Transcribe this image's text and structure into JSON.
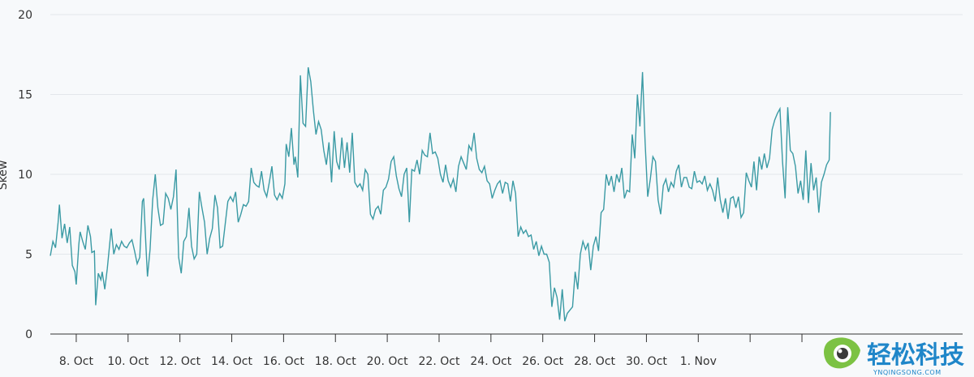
{
  "chart_data": {
    "type": "line",
    "xlabel": "",
    "ylabel": "Skew",
    "ylim": [
      0,
      20
    ],
    "yticks": [
      0,
      5,
      10,
      15,
      20
    ],
    "xlim": [
      7.0,
      42.2
    ],
    "xticks": [
      {
        "x": 8,
        "label": "8. Oct"
      },
      {
        "x": 10,
        "label": "10. Oct"
      },
      {
        "x": 12,
        "label": "12. Oct"
      },
      {
        "x": 14,
        "label": "14. Oct"
      },
      {
        "x": 16,
        "label": "16. Oct"
      },
      {
        "x": 18,
        "label": "18. Oct"
      },
      {
        "x": 20,
        "label": "20. Oct"
      },
      {
        "x": 22,
        "label": "22. Oct"
      },
      {
        "x": 24,
        "label": "24. Oct"
      },
      {
        "x": 26,
        "label": "26. Oct"
      },
      {
        "x": 28,
        "label": "28. Oct"
      },
      {
        "x": 30,
        "label": "30. Oct"
      },
      {
        "x": 32,
        "label": "1. Nov"
      },
      {
        "x": 34,
        "label": ""
      },
      {
        "x": 36,
        "label": ""
      }
    ],
    "series": [
      {
        "name": "",
        "color": "#3a9aa4",
        "points": [
          [
            7.0,
            4.9
          ],
          [
            7.1,
            5.8
          ],
          [
            7.2,
            5.4
          ],
          [
            7.3,
            7.0
          ],
          [
            7.35,
            8.1
          ],
          [
            7.45,
            6.0
          ],
          [
            7.55,
            6.9
          ],
          [
            7.65,
            5.7
          ],
          [
            7.75,
            6.7
          ],
          [
            7.85,
            4.3
          ],
          [
            7.95,
            3.9
          ],
          [
            8.0,
            3.1
          ],
          [
            8.1,
            5.6
          ],
          [
            8.15,
            6.4
          ],
          [
            8.25,
            5.8
          ],
          [
            8.35,
            5.3
          ],
          [
            8.45,
            6.8
          ],
          [
            8.55,
            6.1
          ],
          [
            8.6,
            5.1
          ],
          [
            8.7,
            5.2
          ],
          [
            8.75,
            1.8
          ],
          [
            8.85,
            3.8
          ],
          [
            8.95,
            3.4
          ],
          [
            9.0,
            3.9
          ],
          [
            9.1,
            2.8
          ],
          [
            9.2,
            4.1
          ],
          [
            9.35,
            6.6
          ],
          [
            9.45,
            5.0
          ],
          [
            9.55,
            5.6
          ],
          [
            9.65,
            5.3
          ],
          [
            9.75,
            5.8
          ],
          [
            9.85,
            5.5
          ],
          [
            9.95,
            5.4
          ],
          [
            10.05,
            5.7
          ],
          [
            10.15,
            5.9
          ],
          [
            10.25,
            5.2
          ],
          [
            10.35,
            4.4
          ],
          [
            10.45,
            4.8
          ],
          [
            10.55,
            8.3
          ],
          [
            10.6,
            8.5
          ],
          [
            10.7,
            5.2
          ],
          [
            10.75,
            3.6
          ],
          [
            10.85,
            5.3
          ],
          [
            10.95,
            8.4
          ],
          [
            11.05,
            10.0
          ],
          [
            11.15,
            7.9
          ],
          [
            11.25,
            6.8
          ],
          [
            11.35,
            6.9
          ],
          [
            11.45,
            8.8
          ],
          [
            11.55,
            8.5
          ],
          [
            11.65,
            7.8
          ],
          [
            11.75,
            8.6
          ],
          [
            11.85,
            10.3
          ],
          [
            11.95,
            4.8
          ],
          [
            12.05,
            3.8
          ],
          [
            12.15,
            5.8
          ],
          [
            12.25,
            6.1
          ],
          [
            12.35,
            7.9
          ],
          [
            12.45,
            5.5
          ],
          [
            12.55,
            4.7
          ],
          [
            12.65,
            5.0
          ],
          [
            12.75,
            8.9
          ],
          [
            12.85,
            7.9
          ],
          [
            12.95,
            7.0
          ],
          [
            13.05,
            5.0
          ],
          [
            13.15,
            6.0
          ],
          [
            13.25,
            6.6
          ],
          [
            13.35,
            8.7
          ],
          [
            13.45,
            7.9
          ],
          [
            13.55,
            5.4
          ],
          [
            13.65,
            5.5
          ],
          [
            13.75,
            6.9
          ],
          [
            13.85,
            8.3
          ],
          [
            13.95,
            8.6
          ],
          [
            14.05,
            8.3
          ],
          [
            14.15,
            8.9
          ],
          [
            14.25,
            7.0
          ],
          [
            14.35,
            7.5
          ],
          [
            14.45,
            8.1
          ],
          [
            14.55,
            8.0
          ],
          [
            14.65,
            8.3
          ],
          [
            14.75,
            10.4
          ],
          [
            14.85,
            9.5
          ],
          [
            14.95,
            9.3
          ],
          [
            15.05,
            9.2
          ],
          [
            15.15,
            10.2
          ],
          [
            15.25,
            9.0
          ],
          [
            15.35,
            8.6
          ],
          [
            15.45,
            9.5
          ],
          [
            15.55,
            10.5
          ],
          [
            15.65,
            8.7
          ],
          [
            15.75,
            8.4
          ],
          [
            15.85,
            8.8
          ],
          [
            15.95,
            8.5
          ],
          [
            16.05,
            9.4
          ],
          [
            16.1,
            11.9
          ],
          [
            16.2,
            11.1
          ],
          [
            16.3,
            12.9
          ],
          [
            16.4,
            10.6
          ],
          [
            16.45,
            11.1
          ],
          [
            16.55,
            9.8
          ],
          [
            16.65,
            16.2
          ],
          [
            16.75,
            13.2
          ],
          [
            16.85,
            13.0
          ],
          [
            16.95,
            16.7
          ],
          [
            17.05,
            15.8
          ],
          [
            17.15,
            14.0
          ],
          [
            17.25,
            12.5
          ],
          [
            17.35,
            13.3
          ],
          [
            17.45,
            12.8
          ],
          [
            17.55,
            11.5
          ],
          [
            17.65,
            10.6
          ],
          [
            17.75,
            12.0
          ],
          [
            17.85,
            9.5
          ],
          [
            17.95,
            12.7
          ],
          [
            18.05,
            10.8
          ],
          [
            18.15,
            10.3
          ],
          [
            18.25,
            12.3
          ],
          [
            18.35,
            10.4
          ],
          [
            18.45,
            12.0
          ],
          [
            18.55,
            10.1
          ],
          [
            18.65,
            12.6
          ],
          [
            18.75,
            9.5
          ],
          [
            18.85,
            9.2
          ],
          [
            18.95,
            9.4
          ],
          [
            19.05,
            9.0
          ],
          [
            19.15,
            10.3
          ],
          [
            19.25,
            10.0
          ],
          [
            19.35,
            7.5
          ],
          [
            19.45,
            7.2
          ],
          [
            19.55,
            7.8
          ],
          [
            19.65,
            8.0
          ],
          [
            19.75,
            7.5
          ],
          [
            19.85,
            9.0
          ],
          [
            19.95,
            9.2
          ],
          [
            20.05,
            9.7
          ],
          [
            20.15,
            10.8
          ],
          [
            20.25,
            11.1
          ],
          [
            20.35,
            9.9
          ],
          [
            20.45,
            9.1
          ],
          [
            20.55,
            8.6
          ],
          [
            20.65,
            10.0
          ],
          [
            20.75,
            10.4
          ],
          [
            20.85,
            7.0
          ],
          [
            20.95,
            10.3
          ],
          [
            21.05,
            10.2
          ],
          [
            21.15,
            10.9
          ],
          [
            21.25,
            10.0
          ],
          [
            21.35,
            11.5
          ],
          [
            21.45,
            11.2
          ],
          [
            21.55,
            11.1
          ],
          [
            21.65,
            12.6
          ],
          [
            21.75,
            11.3
          ],
          [
            21.85,
            11.4
          ],
          [
            21.95,
            11.0
          ],
          [
            22.05,
            10.0
          ],
          [
            22.15,
            9.5
          ],
          [
            22.25,
            10.6
          ],
          [
            22.35,
            9.6
          ],
          [
            22.45,
            9.2
          ],
          [
            22.55,
            9.7
          ],
          [
            22.65,
            8.9
          ],
          [
            22.75,
            10.5
          ],
          [
            22.85,
            11.1
          ],
          [
            22.95,
            10.7
          ],
          [
            23.05,
            10.3
          ],
          [
            23.15,
            11.8
          ],
          [
            23.25,
            11.5
          ],
          [
            23.35,
            12.6
          ],
          [
            23.45,
            11.0
          ],
          [
            23.55,
            10.3
          ],
          [
            23.65,
            10.1
          ],
          [
            23.75,
            10.5
          ],
          [
            23.85,
            9.6
          ],
          [
            23.95,
            9.4
          ],
          [
            24.05,
            8.5
          ],
          [
            24.15,
            9.0
          ],
          [
            24.25,
            9.4
          ],
          [
            24.35,
            9.6
          ],
          [
            24.45,
            8.8
          ],
          [
            24.55,
            9.5
          ],
          [
            24.65,
            9.4
          ],
          [
            24.75,
            8.3
          ],
          [
            24.85,
            9.6
          ],
          [
            24.95,
            8.8
          ],
          [
            25.05,
            6.1
          ],
          [
            25.15,
            6.7
          ],
          [
            25.25,
            6.3
          ],
          [
            25.35,
            6.5
          ],
          [
            25.45,
            6.1
          ],
          [
            25.55,
            6.2
          ],
          [
            25.65,
            5.3
          ],
          [
            25.75,
            5.8
          ],
          [
            25.85,
            4.9
          ],
          [
            25.95,
            5.5
          ],
          [
            26.05,
            5.0
          ],
          [
            26.15,
            5.0
          ],
          [
            26.25,
            4.5
          ],
          [
            26.35,
            1.7
          ],
          [
            26.45,
            2.9
          ],
          [
            26.55,
            2.3
          ],
          [
            26.65,
            0.9
          ],
          [
            26.75,
            2.8
          ],
          [
            26.85,
            0.8
          ],
          [
            26.95,
            1.3
          ],
          [
            27.05,
            1.5
          ],
          [
            27.15,
            1.7
          ],
          [
            27.25,
            3.9
          ],
          [
            27.35,
            2.8
          ],
          [
            27.45,
            5.0
          ],
          [
            27.55,
            5.8
          ],
          [
            27.65,
            5.3
          ],
          [
            27.75,
            5.7
          ],
          [
            27.85,
            4.0
          ],
          [
            27.95,
            5.5
          ],
          [
            28.05,
            6.1
          ],
          [
            28.15,
            5.2
          ],
          [
            28.25,
            7.6
          ],
          [
            28.35,
            7.8
          ],
          [
            28.45,
            10.0
          ],
          [
            28.55,
            9.3
          ],
          [
            28.65,
            9.9
          ],
          [
            28.75,
            8.9
          ],
          [
            28.85,
            10.0
          ],
          [
            28.95,
            9.5
          ],
          [
            29.05,
            10.4
          ],
          [
            29.15,
            8.5
          ],
          [
            29.25,
            9.0
          ],
          [
            29.35,
            8.9
          ],
          [
            29.45,
            12.5
          ],
          [
            29.55,
            11.0
          ],
          [
            29.65,
            15.0
          ],
          [
            29.75,
            13.0
          ],
          [
            29.85,
            16.4
          ],
          [
            29.95,
            12.0
          ],
          [
            30.05,
            8.6
          ],
          [
            30.15,
            9.7
          ],
          [
            30.25,
            11.1
          ],
          [
            30.35,
            10.8
          ],
          [
            30.45,
            8.4
          ],
          [
            30.55,
            7.5
          ],
          [
            30.65,
            9.3
          ],
          [
            30.75,
            9.7
          ],
          [
            30.85,
            8.9
          ],
          [
            30.95,
            9.5
          ],
          [
            31.05,
            9.2
          ],
          [
            31.15,
            10.2
          ],
          [
            31.25,
            10.6
          ],
          [
            31.35,
            9.2
          ],
          [
            31.45,
            9.8
          ],
          [
            31.55,
            9.8
          ],
          [
            31.65,
            9.2
          ],
          [
            31.75,
            9.1
          ],
          [
            31.85,
            10.2
          ],
          [
            31.95,
            9.5
          ],
          [
            32.05,
            9.6
          ],
          [
            32.15,
            9.4
          ],
          [
            32.25,
            9.9
          ],
          [
            32.35,
            9.0
          ],
          [
            32.45,
            9.4
          ],
          [
            32.55,
            9.0
          ],
          [
            32.65,
            8.3
          ],
          [
            32.75,
            9.8
          ],
          [
            32.85,
            8.4
          ],
          [
            32.95,
            7.6
          ],
          [
            33.05,
            8.5
          ],
          [
            33.15,
            7.2
          ],
          [
            33.25,
            8.5
          ],
          [
            33.35,
            8.6
          ],
          [
            33.45,
            7.9
          ],
          [
            33.55,
            8.6
          ],
          [
            33.65,
            7.3
          ],
          [
            33.75,
            7.6
          ],
          [
            33.85,
            10.1
          ],
          [
            33.95,
            9.6
          ],
          [
            34.05,
            9.2
          ],
          [
            34.15,
            10.8
          ],
          [
            34.25,
            9.0
          ],
          [
            34.35,
            11.1
          ],
          [
            34.45,
            10.3
          ],
          [
            34.55,
            11.3
          ],
          [
            34.65,
            10.4
          ],
          [
            34.75,
            11.0
          ],
          [
            34.85,
            12.8
          ],
          [
            34.95,
            13.4
          ],
          [
            35.05,
            13.8
          ],
          [
            35.15,
            14.1
          ],
          [
            35.25,
            10.8
          ],
          [
            35.35,
            8.5
          ],
          [
            35.45,
            14.2
          ],
          [
            35.55,
            11.5
          ],
          [
            35.65,
            11.3
          ],
          [
            35.75,
            10.5
          ],
          [
            35.85,
            8.8
          ],
          [
            35.95,
            9.6
          ],
          [
            36.05,
            8.4
          ],
          [
            36.15,
            11.5
          ],
          [
            36.25,
            8.2
          ],
          [
            36.35,
            10.7
          ],
          [
            36.45,
            9.0
          ],
          [
            36.55,
            9.8
          ],
          [
            36.65,
            7.6
          ],
          [
            36.75,
            9.5
          ],
          [
            36.85,
            10.0
          ],
          [
            36.95,
            10.6
          ],
          [
            37.05,
            10.9
          ],
          [
            37.1,
            13.9
          ]
        ]
      }
    ]
  },
  "watermark": {
    "text": "轻松科技",
    "subtext": "YNQINGSONG.COM"
  }
}
